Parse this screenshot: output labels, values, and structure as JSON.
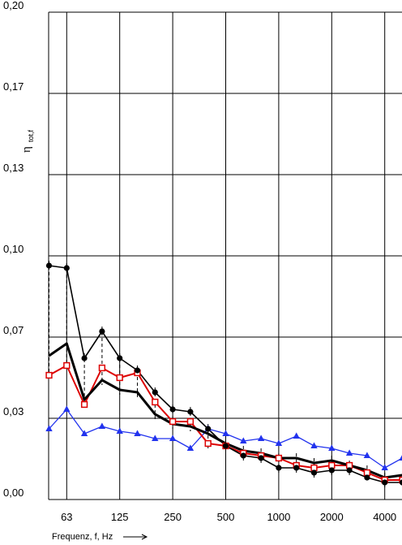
{
  "chart_data": {
    "type": "line",
    "xlabel": "Frequenz,  f, Hz",
    "ylabel_main": "η",
    "ylabel_sub": "tot,f",
    "ylim": [
      0,
      0.2
    ],
    "y_ticks": [
      "0,00",
      "0,03",
      "0,07",
      "0,10",
      "0,13",
      "0,17",
      "0,20"
    ],
    "x_ticks": [
      "63",
      "125",
      "250",
      "500",
      "1000",
      "2000",
      "4000"
    ],
    "x": [
      50,
      63,
      80,
      100,
      125,
      160,
      200,
      250,
      315,
      400,
      500,
      630,
      800,
      1000,
      1250,
      1600,
      2000,
      2500,
      3150,
      4000,
      5000
    ],
    "grid": true,
    "series": [
      {
        "color": "#000000",
        "marker": "circle",
        "line_width": 1.6,
        "values": [
          0.096,
          0.095,
          0.058,
          0.069,
          0.058,
          0.053,
          0.044,
          0.037,
          0.036,
          0.029,
          0.022,
          0.018,
          0.017,
          0.013,
          0.013,
          0.011,
          0.012,
          0.012,
          0.009,
          0.007,
          0.007
        ]
      },
      {
        "color": "#000000",
        "marker": "none",
        "line_width": 3.0,
        "values": [
          0.059,
          0.064,
          0.041,
          0.049,
          0.045,
          0.044,
          0.035,
          0.031,
          0.03,
          0.027,
          0.023,
          0.02,
          0.019,
          0.017,
          0.017,
          0.015,
          0.016,
          0.014,
          0.012,
          0.009,
          0.01
        ]
      },
      {
        "color": "#dd0000",
        "marker": "square",
        "line_width": 2.0,
        "values": [
          0.051,
          0.055,
          0.039,
          0.054,
          0.05,
          0.052,
          0.04,
          0.032,
          0.032,
          0.023,
          0.022,
          0.019,
          0.018,
          0.017,
          0.014,
          0.013,
          0.014,
          0.014,
          0.011,
          0.008,
          0.008
        ]
      },
      {
        "color": "#2233ee",
        "marker": "triangle",
        "line_width": 1.3,
        "values": [
          0.029,
          0.037,
          0.027,
          0.03,
          0.028,
          0.027,
          0.025,
          0.025,
          0.021,
          0.029,
          0.027,
          0.024,
          0.025,
          0.023,
          0.026,
          0.022,
          0.021,
          0.019,
          0.018,
          0.013,
          0.017
        ]
      }
    ]
  }
}
